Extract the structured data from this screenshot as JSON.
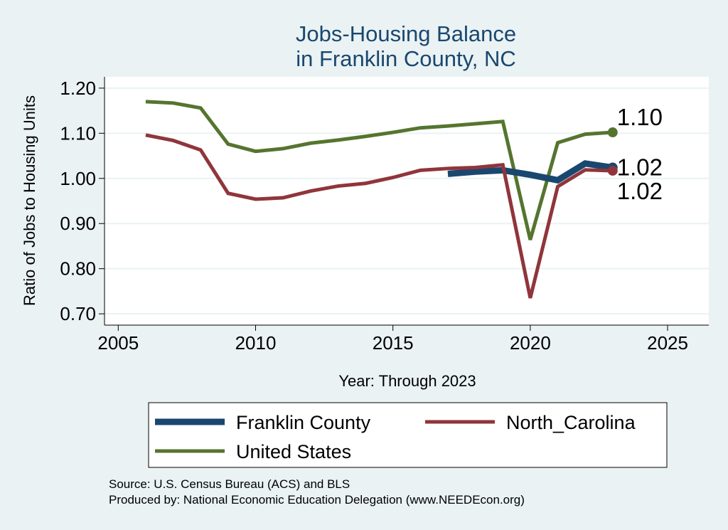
{
  "chart_data": {
    "type": "line",
    "title_line1": "Jobs-Housing Balance",
    "title_line2": "in Franklin County, NC",
    "xlabel": "Year: Through 2023",
    "ylabel": "Ratio of Jobs to Housing Units",
    "xlim": [
      2004.5,
      2026.5
    ],
    "ylim": [
      0.675,
      1.225
    ],
    "xticks": [
      2005,
      2010,
      2015,
      2020,
      2025
    ],
    "yticks": [
      0.7,
      0.8,
      0.9,
      1.0,
      1.1,
      1.2
    ],
    "ytick_labels": [
      "0.70",
      "0.80",
      "0.90",
      "1.00",
      "1.10",
      "1.20"
    ],
    "grid": true,
    "series": [
      {
        "name": "Franklin County",
        "color": "#1a476f",
        "x": [
          2017,
          2018,
          2019,
          2020,
          2021,
          2022,
          2023
        ],
        "y": [
          1.01,
          1.015,
          1.018,
          1.008,
          0.996,
          1.033,
          1.024
        ],
        "end_label": "1.02"
      },
      {
        "name": "North_Carolina",
        "color": "#90353b",
        "x": [
          2006,
          2007,
          2008,
          2009,
          2010,
          2011,
          2012,
          2013,
          2014,
          2015,
          2016,
          2017,
          2018,
          2019,
          2020,
          2021,
          2022,
          2023
        ],
        "y": [
          1.096,
          1.084,
          1.063,
          0.967,
          0.954,
          0.957,
          0.972,
          0.983,
          0.989,
          1.002,
          1.018,
          1.022,
          1.024,
          1.03,
          0.735,
          0.982,
          1.019,
          1.017
        ],
        "end_label": "1.02"
      },
      {
        "name": "United States",
        "color": "#55752f",
        "x": [
          2006,
          2007,
          2008,
          2009,
          2010,
          2011,
          2012,
          2013,
          2014,
          2015,
          2016,
          2017,
          2018,
          2019,
          2020,
          2021,
          2022,
          2023
        ],
        "y": [
          1.17,
          1.167,
          1.156,
          1.076,
          1.06,
          1.066,
          1.078,
          1.085,
          1.093,
          1.102,
          1.112,
          1.116,
          1.121,
          1.126,
          0.864,
          1.079,
          1.098,
          1.102
        ],
        "end_label": "1.10"
      }
    ],
    "legend": [
      "Franklin County",
      "North_Carolina",
      "United States"
    ],
    "source_line1": "Source: U.S. Census Bureau (ACS) and BLS",
    "source_line2": "Produced by: National Economic Education Delegation (www.NEEDEcon.org)"
  }
}
